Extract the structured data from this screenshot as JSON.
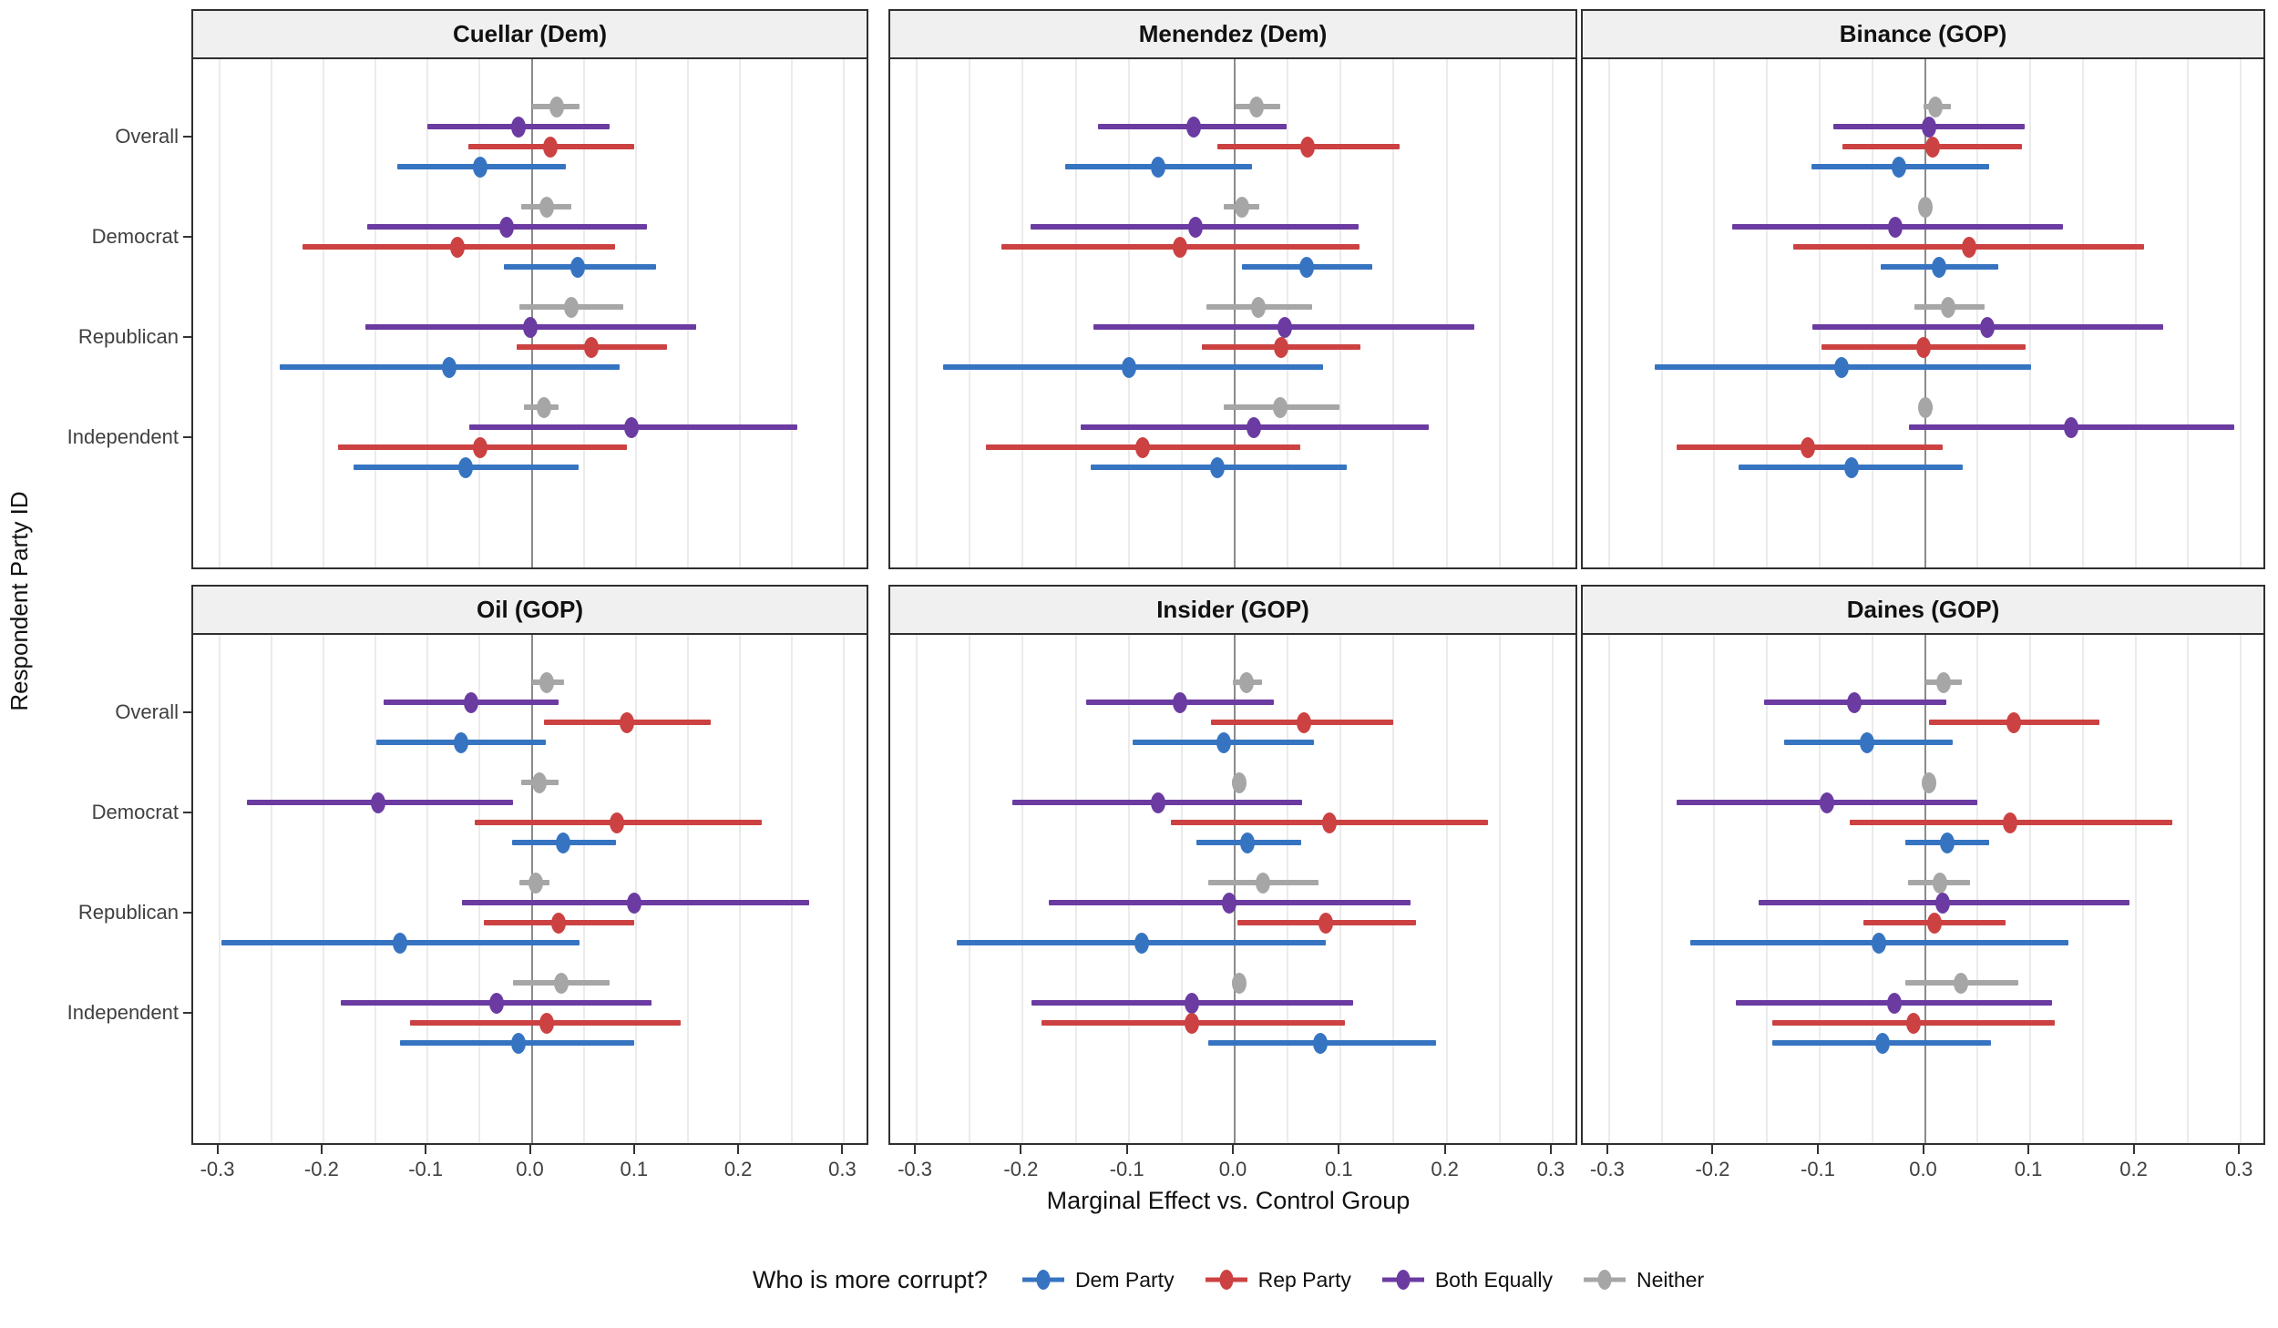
{
  "figure": {
    "x_axis_title": "Marginal Effect vs. Control Group",
    "y_axis_title": "Respondent Party ID",
    "legend": {
      "title": "Who is more corrupt?",
      "items": [
        "Dem Party",
        "Rep Party",
        "Both Equally",
        "Neither"
      ]
    },
    "colors": {
      "Dem Party": "#3674C1",
      "Rep Party": "#CC4141",
      "Both Equally": "#6B3BA1",
      "Neither": "#A6A6A6"
    }
  },
  "chart_data": {
    "type": "pointrange-facets",
    "title": "",
    "xlabel": "Marginal Effect vs. Control Group",
    "ylabel": "Respondent Party ID",
    "x_domain": [
      -0.325,
      0.325
    ],
    "x_ticks": [
      -0.3,
      -0.2,
      -0.1,
      0.0,
      0.1,
      0.2,
      0.3
    ],
    "x_tick_labels": [
      "-0.3",
      "-0.2",
      "-0.1",
      "0.0",
      "0.1",
      "0.2",
      "0.3"
    ],
    "x_minor_step": 0.05,
    "y_groups": [
      "Overall",
      "Democrat",
      "Republican",
      "Independent"
    ],
    "series_draw_order_top_to_bottom": [
      "Neither",
      "Both Equally",
      "Rep Party",
      "Dem Party"
    ],
    "legend_entries": [
      "Dem Party",
      "Rep Party",
      "Both Equally",
      "Neither"
    ],
    "facets": [
      {
        "title": "Cuellar (Dem)",
        "rows": [
          {
            "group": "Overall",
            "points": [
              {
                "series": "Neither",
                "est": 0.024,
                "lo": 0.0,
                "hi": 0.046
              },
              {
                "series": "Both Equally",
                "est": -0.013,
                "lo": -0.1,
                "hi": 0.075
              },
              {
                "series": "Rep Party",
                "est": 0.018,
                "lo": -0.061,
                "hi": 0.098
              },
              {
                "series": "Dem Party",
                "est": -0.049,
                "lo": -0.129,
                "hi": 0.033
              }
            ]
          },
          {
            "group": "Democrat",
            "points": [
              {
                "series": "Neither",
                "est": 0.014,
                "lo": -0.01,
                "hi": 0.038
              },
              {
                "series": "Both Equally",
                "est": -0.024,
                "lo": -0.158,
                "hi": 0.111
              },
              {
                "series": "Rep Party",
                "est": -0.071,
                "lo": -0.22,
                "hi": 0.08
              },
              {
                "series": "Dem Party",
                "est": 0.044,
                "lo": -0.027,
                "hi": 0.119
              }
            ]
          },
          {
            "group": "Republican",
            "points": [
              {
                "series": "Neither",
                "est": 0.038,
                "lo": -0.012,
                "hi": 0.088
              },
              {
                "series": "Both Equally",
                "est": -0.001,
                "lo": -0.16,
                "hi": 0.158
              },
              {
                "series": "Rep Party",
                "est": 0.057,
                "lo": -0.014,
                "hi": 0.13
              },
              {
                "series": "Dem Party",
                "est": -0.079,
                "lo": -0.242,
                "hi": 0.084
              }
            ]
          },
          {
            "group": "Independent",
            "points": [
              {
                "series": "Neither",
                "est": 0.012,
                "lo": -0.007,
                "hi": 0.026
              },
              {
                "series": "Both Equally",
                "est": 0.096,
                "lo": -0.06,
                "hi": 0.255
              },
              {
                "series": "Rep Party",
                "est": -0.049,
                "lo": -0.186,
                "hi": 0.091
              },
              {
                "series": "Dem Party",
                "est": -0.063,
                "lo": -0.171,
                "hi": 0.045
              }
            ]
          }
        ]
      },
      {
        "title": "Menendez (Dem)",
        "rows": [
          {
            "group": "Overall",
            "points": [
              {
                "series": "Neither",
                "est": 0.021,
                "lo": 0.001,
                "hi": 0.043
              },
              {
                "series": "Both Equally",
                "est": -0.039,
                "lo": -0.129,
                "hi": 0.049
              },
              {
                "series": "Rep Party",
                "est": 0.069,
                "lo": -0.016,
                "hi": 0.156
              },
              {
                "series": "Dem Party",
                "est": -0.072,
                "lo": -0.16,
                "hi": 0.016
              }
            ]
          },
          {
            "group": "Democrat",
            "points": [
              {
                "series": "Neither",
                "est": 0.007,
                "lo": -0.01,
                "hi": 0.023
              },
              {
                "series": "Both Equally",
                "est": -0.037,
                "lo": -0.193,
                "hi": 0.117
              },
              {
                "series": "Rep Party",
                "est": -0.052,
                "lo": -0.22,
                "hi": 0.118
              },
              {
                "series": "Dem Party",
                "est": 0.068,
                "lo": 0.007,
                "hi": 0.13
              }
            ]
          },
          {
            "group": "Republican",
            "points": [
              {
                "series": "Neither",
                "est": 0.022,
                "lo": -0.027,
                "hi": 0.073
              },
              {
                "series": "Both Equally",
                "est": 0.047,
                "lo": -0.133,
                "hi": 0.226
              },
              {
                "series": "Rep Party",
                "est": 0.044,
                "lo": -0.031,
                "hi": 0.119
              },
              {
                "series": "Dem Party",
                "est": -0.1,
                "lo": -0.275,
                "hi": 0.083
              }
            ]
          },
          {
            "group": "Independent",
            "points": [
              {
                "series": "Neither",
                "est": 0.043,
                "lo": -0.01,
                "hi": 0.099
              },
              {
                "series": "Both Equally",
                "est": 0.018,
                "lo": -0.145,
                "hi": 0.183
              },
              {
                "series": "Rep Party",
                "est": -0.087,
                "lo": -0.235,
                "hi": 0.062
              },
              {
                "series": "Dem Party",
                "est": -0.016,
                "lo": -0.136,
                "hi": 0.106
              }
            ]
          }
        ]
      },
      {
        "title": "Binance (GOP)",
        "rows": [
          {
            "group": "Overall",
            "points": [
              {
                "series": "Neither",
                "est": 0.01,
                "lo": -0.001,
                "hi": 0.025
              },
              {
                "series": "Both Equally",
                "est": 0.004,
                "lo": -0.087,
                "hi": 0.095
              },
              {
                "series": "Rep Party",
                "est": 0.007,
                "lo": -0.078,
                "hi": 0.092
              },
              {
                "series": "Dem Party",
                "est": -0.025,
                "lo": -0.108,
                "hi": 0.061
              }
            ]
          },
          {
            "group": "Democrat",
            "points": [
              {
                "series": "Neither",
                "est": 0.0,
                "lo": -0.006,
                "hi": 0.006
              },
              {
                "series": "Both Equally",
                "est": -0.028,
                "lo": -0.183,
                "hi": 0.131
              },
              {
                "series": "Rep Party",
                "est": 0.042,
                "lo": -0.125,
                "hi": 0.208
              },
              {
                "series": "Dem Party",
                "est": 0.013,
                "lo": -0.042,
                "hi": 0.07
              }
            ]
          },
          {
            "group": "Republican",
            "points": [
              {
                "series": "Neither",
                "est": 0.022,
                "lo": -0.01,
                "hi": 0.057
              },
              {
                "series": "Both Equally",
                "est": 0.059,
                "lo": -0.107,
                "hi": 0.226
              },
              {
                "series": "Rep Party",
                "est": -0.001,
                "lo": -0.098,
                "hi": 0.096
              },
              {
                "series": "Dem Party",
                "est": -0.079,
                "lo": -0.257,
                "hi": 0.101
              }
            ]
          },
          {
            "group": "Independent",
            "points": [
              {
                "series": "Neither",
                "est": 0.0,
                "lo": -0.006,
                "hi": 0.007
              },
              {
                "series": "Both Equally",
                "est": 0.139,
                "lo": -0.015,
                "hi": 0.294
              },
              {
                "series": "Rep Party",
                "est": -0.111,
                "lo": -0.236,
                "hi": 0.017
              },
              {
                "series": "Dem Party",
                "est": -0.07,
                "lo": -0.177,
                "hi": 0.036
              }
            ]
          }
        ]
      },
      {
        "title": "Oil (GOP)",
        "rows": [
          {
            "group": "Overall",
            "points": [
              {
                "series": "Neither",
                "est": 0.014,
                "lo": 0.0,
                "hi": 0.031
              },
              {
                "series": "Both Equally",
                "est": -0.058,
                "lo": -0.142,
                "hi": 0.026
              },
              {
                "series": "Rep Party",
                "est": 0.091,
                "lo": 0.012,
                "hi": 0.172
              },
              {
                "series": "Dem Party",
                "est": -0.068,
                "lo": -0.149,
                "hi": 0.014
              }
            ]
          },
          {
            "group": "Democrat",
            "points": [
              {
                "series": "Neither",
                "est": 0.007,
                "lo": -0.01,
                "hi": 0.026
              },
              {
                "series": "Both Equally",
                "est": -0.147,
                "lo": -0.273,
                "hi": -0.018
              },
              {
                "series": "Rep Party",
                "est": 0.082,
                "lo": -0.055,
                "hi": 0.221
              },
              {
                "series": "Dem Party",
                "est": 0.03,
                "lo": -0.019,
                "hi": 0.081
              }
            ]
          },
          {
            "group": "Republican",
            "points": [
              {
                "series": "Neither",
                "est": 0.004,
                "lo": -0.012,
                "hi": 0.017
              },
              {
                "series": "Both Equally",
                "est": 0.098,
                "lo": -0.067,
                "hi": 0.266
              },
              {
                "series": "Rep Party",
                "est": 0.026,
                "lo": -0.046,
                "hi": 0.098
              },
              {
                "series": "Dem Party",
                "est": -0.126,
                "lo": -0.298,
                "hi": 0.046
              }
            ]
          },
          {
            "group": "Independent",
            "points": [
              {
                "series": "Neither",
                "est": 0.028,
                "lo": -0.018,
                "hi": 0.075
              },
              {
                "series": "Both Equally",
                "est": -0.034,
                "lo": -0.183,
                "hi": 0.115
              },
              {
                "series": "Rep Party",
                "est": 0.014,
                "lo": -0.117,
                "hi": 0.143
              },
              {
                "series": "Dem Party",
                "est": -0.013,
                "lo": -0.126,
                "hi": 0.098
              }
            ]
          }
        ]
      },
      {
        "title": "Insider (GOP)",
        "rows": [
          {
            "group": "Overall",
            "points": [
              {
                "series": "Neither",
                "est": 0.011,
                "lo": -0.002,
                "hi": 0.026
              },
              {
                "series": "Both Equally",
                "est": -0.052,
                "lo": -0.14,
                "hi": 0.037
              },
              {
                "series": "Rep Party",
                "est": 0.065,
                "lo": -0.022,
                "hi": 0.15
              },
              {
                "series": "Dem Party",
                "est": -0.01,
                "lo": -0.096,
                "hi": 0.075
              }
            ]
          },
          {
            "group": "Democrat",
            "points": [
              {
                "series": "Neither",
                "est": 0.004,
                "lo": -0.003,
                "hi": 0.01
              },
              {
                "series": "Both Equally",
                "est": -0.072,
                "lo": -0.21,
                "hi": 0.064
              },
              {
                "series": "Rep Party",
                "est": 0.089,
                "lo": -0.06,
                "hi": 0.239
              },
              {
                "series": "Dem Party",
                "est": 0.012,
                "lo": -0.036,
                "hi": 0.063
              }
            ]
          },
          {
            "group": "Republican",
            "points": [
              {
                "series": "Neither",
                "est": 0.027,
                "lo": -0.025,
                "hi": 0.079
              },
              {
                "series": "Both Equally",
                "est": -0.005,
                "lo": -0.175,
                "hi": 0.166
              },
              {
                "series": "Rep Party",
                "est": 0.086,
                "lo": 0.003,
                "hi": 0.171
              },
              {
                "series": "Dem Party",
                "est": -0.088,
                "lo": -0.262,
                "hi": 0.086
              }
            ]
          },
          {
            "group": "Independent",
            "points": [
              {
                "series": "Neither",
                "est": 0.004,
                "lo": -0.003,
                "hi": 0.01
              },
              {
                "series": "Both Equally",
                "est": -0.04,
                "lo": -0.192,
                "hi": 0.112
              },
              {
                "series": "Rep Party",
                "est": -0.04,
                "lo": -0.182,
                "hi": 0.104
              },
              {
                "series": "Dem Party",
                "est": 0.081,
                "lo": -0.025,
                "hi": 0.19
              }
            ]
          }
        ]
      },
      {
        "title": "Daines (GOP)",
        "rows": [
          {
            "group": "Overall",
            "points": [
              {
                "series": "Neither",
                "est": 0.018,
                "lo": 0.0,
                "hi": 0.035
              },
              {
                "series": "Both Equally",
                "est": -0.067,
                "lo": -0.153,
                "hi": 0.02
              },
              {
                "series": "Rep Party",
                "est": 0.084,
                "lo": 0.004,
                "hi": 0.166
              },
              {
                "series": "Dem Party",
                "est": -0.055,
                "lo": -0.134,
                "hi": 0.026
              }
            ]
          },
          {
            "group": "Democrat",
            "points": [
              {
                "series": "Neither",
                "est": 0.004,
                "lo": -0.002,
                "hi": 0.01
              },
              {
                "series": "Both Equally",
                "est": -0.093,
                "lo": -0.236,
                "hi": 0.05
              },
              {
                "series": "Rep Party",
                "est": 0.081,
                "lo": -0.071,
                "hi": 0.235
              },
              {
                "series": "Dem Party",
                "est": 0.021,
                "lo": -0.019,
                "hi": 0.061
              }
            ]
          },
          {
            "group": "Republican",
            "points": [
              {
                "series": "Neither",
                "est": 0.014,
                "lo": -0.016,
                "hi": 0.043
              },
              {
                "series": "Both Equally",
                "est": 0.017,
                "lo": -0.158,
                "hi": 0.194
              },
              {
                "series": "Rep Party",
                "est": 0.009,
                "lo": -0.058,
                "hi": 0.077
              },
              {
                "series": "Dem Party",
                "est": -0.044,
                "lo": -0.223,
                "hi": 0.136
              }
            ]
          },
          {
            "group": "Independent",
            "points": [
              {
                "series": "Neither",
                "est": 0.034,
                "lo": -0.019,
                "hi": 0.089
              },
              {
                "series": "Both Equally",
                "est": -0.029,
                "lo": -0.18,
                "hi": 0.121
              },
              {
                "series": "Rep Party",
                "est": -0.011,
                "lo": -0.145,
                "hi": 0.123
              },
              {
                "series": "Dem Party",
                "est": -0.04,
                "lo": -0.145,
                "hi": 0.063
              }
            ]
          }
        ]
      }
    ]
  }
}
